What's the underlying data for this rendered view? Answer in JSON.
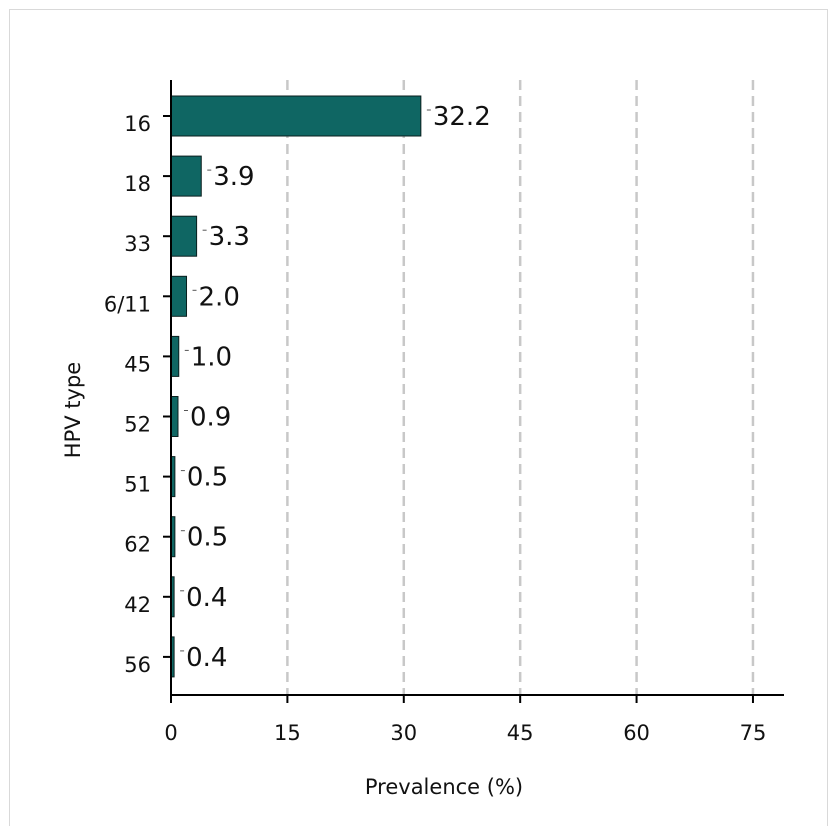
{
  "chart_data": {
    "type": "bar",
    "orientation": "horizontal",
    "categories": [
      "16",
      "18",
      "33",
      "6/11",
      "45",
      "52",
      "51",
      "62",
      "42",
      "56"
    ],
    "values": [
      32.2,
      3.9,
      3.3,
      2.0,
      1.0,
      0.9,
      0.5,
      0.5,
      0.4,
      0.4
    ],
    "data_labels": [
      "32.2",
      "3.9",
      "3.3",
      "2.0",
      "1.0",
      "0.9",
      "0.5",
      "0.5",
      "0.4",
      "0.4"
    ],
    "xlabel": "Prevalence (%)",
    "ylabel": "HPV type",
    "xlim": [
      0,
      79
    ],
    "xticks": [
      0,
      15,
      30,
      45,
      60,
      75
    ],
    "xtick_labels": [
      "0",
      "15",
      "30",
      "45",
      "60",
      "75"
    ],
    "grid": "vertical dashed",
    "legend": "none",
    "colors": {
      "bar_fill": "#0f6663",
      "bar_stroke": "#0a1f1e",
      "grid": "#c8c8c8",
      "axis": "#000000"
    }
  }
}
